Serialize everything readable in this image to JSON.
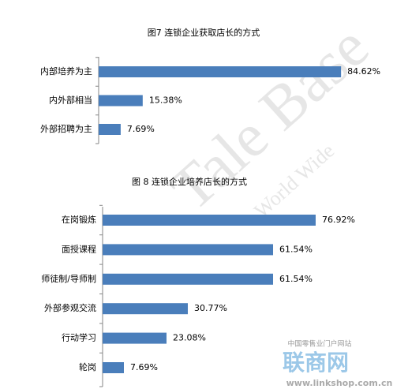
{
  "chart_data": [
    {
      "type": "bar",
      "orientation": "horizontal",
      "title": "图7  连锁企业获取店长的方式",
      "categories": [
        "内部培养为主",
        "内外部相当",
        "外部招聘为主"
      ],
      "values": [
        84.62,
        15.38,
        7.69
      ],
      "value_labels": [
        "84.62%",
        "15.38%",
        "7.69%"
      ],
      "color": "#4a7ebb",
      "xlim": [
        0,
        100
      ]
    },
    {
      "type": "bar",
      "orientation": "horizontal",
      "title": "图 8  连锁企业培养店长的方式",
      "categories": [
        "在岗锻炼",
        "面授课程",
        "师徒制/导师制",
        "外部参观交流",
        "行动学习",
        "轮岗"
      ],
      "values": [
        76.92,
        61.54,
        61.54,
        30.77,
        23.08,
        7.69
      ],
      "value_labels": [
        "76.92%",
        "61.54%",
        "61.54%",
        "30.77%",
        "23.08%",
        "7.69%"
      ],
      "color": "#4a7ebb",
      "xlim": [
        0,
        100
      ]
    }
  ],
  "watermark": {
    "brand": "Tale Base",
    "sub": "World Wide",
    "site_desc": "中国零售业门户网站",
    "site_name": "联商网",
    "url": "www.linkshop.com.cn"
  }
}
